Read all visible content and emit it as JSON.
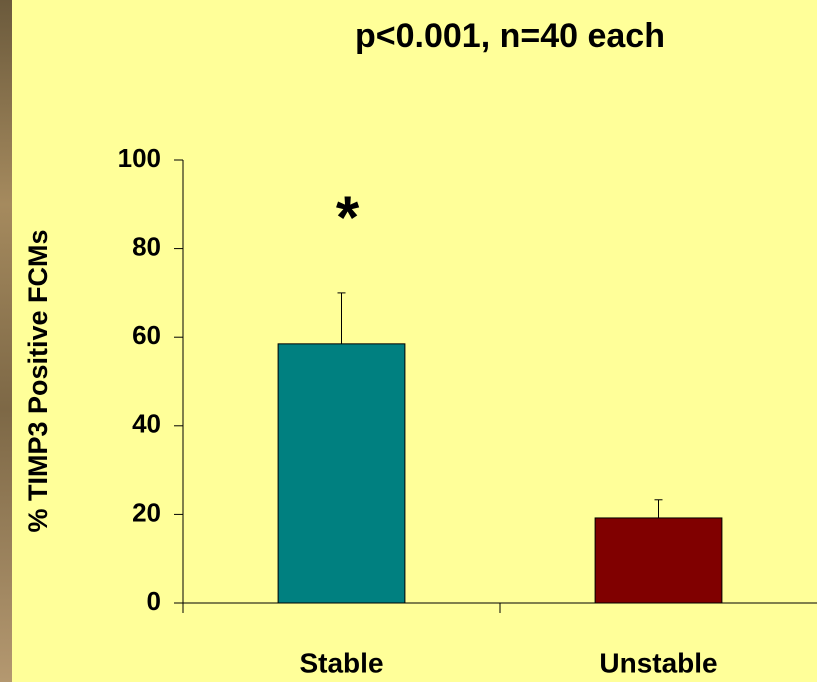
{
  "chart_data": {
    "type": "bar",
    "title": "p<0.001, n=40 each",
    "y_label": "% TIMP3 Positive FCMs",
    "categories": [
      "Stable",
      "Unstable"
    ],
    "values": [
      58.5,
      19.2
    ],
    "errors": [
      11.5,
      4.1
    ],
    "colors": [
      "#008080",
      "#800000"
    ],
    "annotation": "*",
    "ylim": [
      0,
      100
    ],
    "yticks": [
      0,
      20,
      40,
      60,
      80,
      100
    ],
    "grid": false
  }
}
